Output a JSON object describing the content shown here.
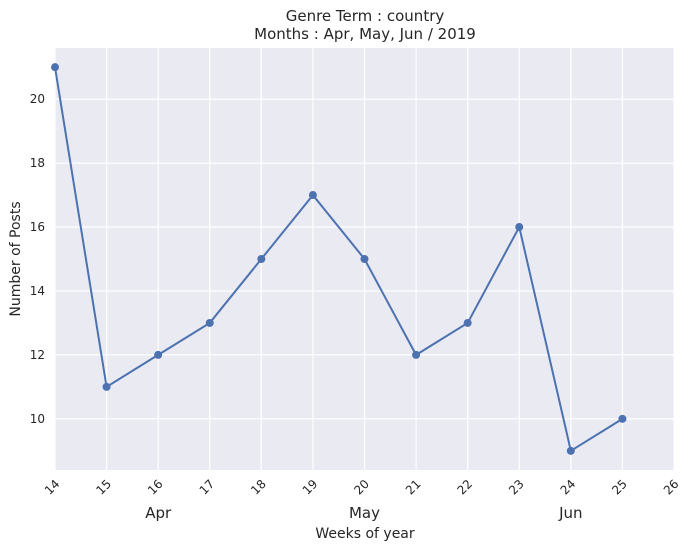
{
  "chart_data": {
    "type": "line",
    "title": "Genre Term : country",
    "subtitle": "Months : Apr, May, Jun / 2019",
    "xlabel": "Weeks of year",
    "ylabel": "Number of Posts",
    "x": [
      14,
      15,
      16,
      17,
      18,
      19,
      20,
      21,
      22,
      23,
      24,
      25
    ],
    "values": [
      21,
      11,
      12,
      13,
      15,
      17,
      15,
      12,
      13,
      16,
      9,
      10
    ],
    "xlim": [
      14,
      26
    ],
    "ylim": [
      8.4,
      21.6
    ],
    "xticks": [
      "14",
      "15",
      "16",
      "17",
      "18",
      "19",
      "20",
      "21",
      "22",
      "23",
      "24",
      "25",
      "26"
    ],
    "yticks": [
      "10",
      "12",
      "14",
      "16",
      "18",
      "20"
    ],
    "month_labels": [
      {
        "label": "Apr",
        "week": 16
      },
      {
        "label": "May",
        "week": 20
      },
      {
        "label": "Jun",
        "week": 24
      }
    ],
    "grid": true,
    "colors": {
      "background": "#eaeaf2",
      "grid": "#ffffff",
      "line": "#4c72b0"
    }
  }
}
